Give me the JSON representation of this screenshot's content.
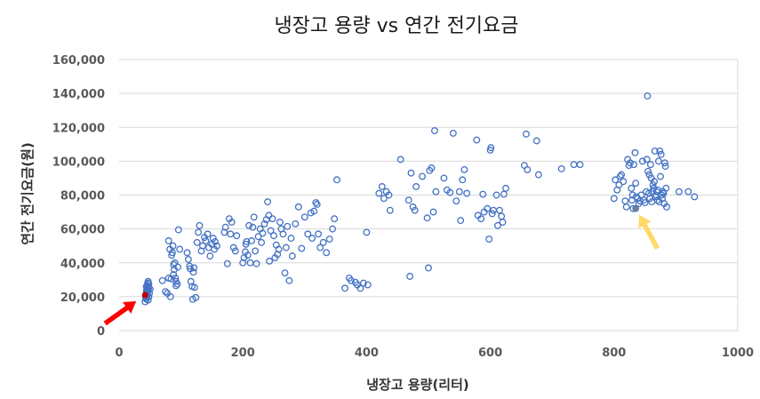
{
  "chart_data": {
    "type": "scatter",
    "title": "냉장고 용량 vs 연간 전기요금",
    "xlabel": "냉장고 용량(리터)",
    "ylabel": "연간 전기요금(원)",
    "xlim": [
      0,
      1000
    ],
    "ylim": [
      0,
      160000
    ],
    "x_ticks": [
      "0",
      "200",
      "400",
      "600",
      "800",
      "1000"
    ],
    "y_ticks": [
      "0",
      "20,000",
      "40,000",
      "60,000",
      "80,000",
      "100,000",
      "120,000",
      "140,000",
      "160,000"
    ],
    "grid": "horizontal",
    "legend": "none",
    "colors": {
      "marker": "#4472c4",
      "highlight": "#c00000",
      "red_arrow": "#ff0000",
      "yellow_arrow": "#ffd966",
      "grid": "#d9d9d9"
    },
    "highlights": [
      {
        "x": 42,
        "y": 21000,
        "arrow_color": "red"
      },
      {
        "x": 835,
        "y": 72000,
        "arrow_color": "yellow"
      }
    ],
    "series": [
      {
        "points": [
          [
            42,
            17000
          ],
          [
            44,
            18500
          ],
          [
            43,
            20000
          ],
          [
            45,
            21000
          ],
          [
            46,
            22500
          ],
          [
            44,
            23500
          ],
          [
            47,
            24000
          ],
          [
            45,
            25000
          ],
          [
            46,
            26500
          ],
          [
            48,
            27500
          ],
          [
            47,
            29000
          ],
          [
            43,
            19500
          ],
          [
            45,
            23000
          ],
          [
            48,
            25500
          ],
          [
            46,
            28000
          ],
          [
            44,
            26000
          ],
          [
            49,
            22000
          ],
          [
            50,
            24500
          ],
          [
            47,
            18000
          ],
          [
            48,
            20000
          ],
          [
            70,
            29500
          ],
          [
            75,
            23000
          ],
          [
            78,
            22000
          ],
          [
            80,
            53000
          ],
          [
            82,
            48000
          ],
          [
            84,
            30500
          ],
          [
            85,
            44500
          ],
          [
            86,
            46000
          ],
          [
            88,
            39000
          ],
          [
            88,
            33000
          ],
          [
            90,
            40000
          ],
          [
            91,
            31000
          ],
          [
            92,
            29000
          ],
          [
            92,
            26500
          ],
          [
            94,
            27500
          ],
          [
            95,
            37500
          ],
          [
            96,
            59500
          ],
          [
            98,
            48000
          ],
          [
            80,
            31000
          ],
          [
            83,
            20000
          ],
          [
            87,
            50000
          ],
          [
            89,
            36000
          ],
          [
            110,
            46000
          ],
          [
            112,
            42000
          ],
          [
            114,
            38000
          ],
          [
            115,
            36500
          ],
          [
            116,
            29000
          ],
          [
            118,
            26000
          ],
          [
            119,
            18500
          ],
          [
            120,
            34500
          ],
          [
            121,
            37000
          ],
          [
            122,
            25500
          ],
          [
            124,
            19500
          ],
          [
            126,
            52000
          ],
          [
            128,
            58000
          ],
          [
            130,
            62000
          ],
          [
            133,
            47000
          ],
          [
            135,
            50000
          ],
          [
            138,
            55000
          ],
          [
            140,
            53000
          ],
          [
            143,
            57000
          ],
          [
            145,
            49000
          ],
          [
            147,
            44000
          ],
          [
            150,
            51000
          ],
          [
            152,
            54500
          ],
          [
            154,
            48000
          ],
          [
            155,
            52500
          ],
          [
            158,
            50000
          ],
          [
            170,
            58000
          ],
          [
            172,
            61000
          ],
          [
            175,
            39500
          ],
          [
            178,
            66000
          ],
          [
            180,
            57000
          ],
          [
            182,
            64000
          ],
          [
            185,
            49000
          ],
          [
            188,
            47000
          ],
          [
            190,
            56000
          ],
          [
            200,
            40000
          ],
          [
            202,
            43000
          ],
          [
            204,
            46500
          ],
          [
            205,
            51000
          ],
          [
            206,
            52500
          ],
          [
            208,
            44500
          ],
          [
            210,
            62000
          ],
          [
            212,
            40000
          ],
          [
            214,
            53000
          ],
          [
            216,
            61000
          ],
          [
            218,
            67000
          ],
          [
            220,
            47000
          ],
          [
            222,
            39500
          ],
          [
            225,
            55500
          ],
          [
            228,
            60000
          ],
          [
            230,
            52000
          ],
          [
            232,
            57500
          ],
          [
            235,
            63000
          ],
          [
            238,
            65500
          ],
          [
            240,
            76000
          ],
          [
            242,
            68000
          ],
          [
            243,
            41000
          ],
          [
            245,
            59000
          ],
          [
            248,
            66000
          ],
          [
            250,
            56000
          ],
          [
            252,
            43000
          ],
          [
            254,
            50500
          ],
          [
            256,
            45000
          ],
          [
            258,
            48000
          ],
          [
            260,
            64000
          ],
          [
            262,
            60000
          ],
          [
            265,
            57000
          ],
          [
            268,
            34000
          ],
          [
            270,
            49000
          ],
          [
            272,
            61500
          ],
          [
            275,
            29500
          ],
          [
            278,
            54500
          ],
          [
            280,
            44000
          ],
          [
            285,
            63000
          ],
          [
            290,
            73000
          ],
          [
            295,
            48500
          ],
          [
            300,
            67000
          ],
          [
            305,
            57000
          ],
          [
            310,
            69500
          ],
          [
            312,
            54500
          ],
          [
            315,
            70500
          ],
          [
            318,
            75500
          ],
          [
            320,
            74500
          ],
          [
            322,
            57000
          ],
          [
            325,
            49000
          ],
          [
            330,
            52000
          ],
          [
            335,
            46000
          ],
          [
            340,
            54000
          ],
          [
            345,
            60000
          ],
          [
            348,
            66000
          ],
          [
            352,
            89000
          ],
          [
            365,
            25000
          ],
          [
            372,
            31000
          ],
          [
            375,
            29500
          ],
          [
            382,
            28500
          ],
          [
            385,
            27000
          ],
          [
            390,
            25000
          ],
          [
            395,
            28000
          ],
          [
            400,
            58000
          ],
          [
            402,
            27000
          ],
          [
            420,
            81000
          ],
          [
            425,
            85000
          ],
          [
            428,
            78000
          ],
          [
            432,
            82000
          ],
          [
            436,
            80000
          ],
          [
            438,
            71000
          ],
          [
            455,
            101000
          ],
          [
            468,
            77000
          ],
          [
            470,
            32000
          ],
          [
            472,
            93000
          ],
          [
            475,
            73000
          ],
          [
            478,
            71000
          ],
          [
            480,
            85000
          ],
          [
            490,
            91000
          ],
          [
            498,
            66500
          ],
          [
            500,
            37000
          ],
          [
            502,
            94500
          ],
          [
            505,
            96000
          ],
          [
            508,
            70000
          ],
          [
            510,
            118000
          ],
          [
            512,
            82000
          ],
          [
            525,
            90000
          ],
          [
            530,
            83000
          ],
          [
            535,
            81500
          ],
          [
            540,
            116500
          ],
          [
            545,
            76500
          ],
          [
            550,
            82000
          ],
          [
            552,
            65000
          ],
          [
            555,
            89000
          ],
          [
            558,
            95000
          ],
          [
            562,
            81000
          ],
          [
            578,
            112500
          ],
          [
            580,
            68000
          ],
          [
            585,
            66000
          ],
          [
            588,
            80500
          ],
          [
            590,
            70000
          ],
          [
            595,
            72000
          ],
          [
            598,
            54000
          ],
          [
            600,
            106500
          ],
          [
            601,
            108000
          ],
          [
            603,
            69000
          ],
          [
            605,
            71000
          ],
          [
            610,
            80000
          ],
          [
            612,
            62000
          ],
          [
            615,
            71000
          ],
          [
            618,
            67500
          ],
          [
            620,
            64000
          ],
          [
            622,
            80500
          ],
          [
            625,
            84000
          ],
          [
            655,
            97500
          ],
          [
            658,
            116000
          ],
          [
            660,
            95000
          ],
          [
            675,
            112000
          ],
          [
            678,
            92000
          ],
          [
            715,
            95500
          ],
          [
            735,
            98000
          ],
          [
            745,
            98000
          ],
          [
            800,
            78000
          ],
          [
            802,
            89000
          ],
          [
            805,
            83000
          ],
          [
            808,
            86000
          ],
          [
            810,
            91000
          ],
          [
            812,
            92000
          ],
          [
            815,
            88000
          ],
          [
            818,
            76500
          ],
          [
            820,
            73000
          ],
          [
            822,
            101000
          ],
          [
            824,
            97500
          ],
          [
            826,
            99000
          ],
          [
            828,
            84000
          ],
          [
            829,
            77000
          ],
          [
            830,
            80000
          ],
          [
            831,
            72000
          ],
          [
            832,
            98000
          ],
          [
            834,
            105000
          ],
          [
            835,
            87000
          ],
          [
            836,
            79000
          ],
          [
            838,
            78000
          ],
          [
            840,
            75000
          ],
          [
            842,
            76500
          ],
          [
            844,
            80000
          ],
          [
            846,
            100000
          ],
          [
            848,
            77000
          ],
          [
            850,
            75500
          ],
          [
            852,
            82000
          ],
          [
            853,
            101000
          ],
          [
            854,
            138500
          ],
          [
            855,
            94000
          ],
          [
            856,
            81000
          ],
          [
            857,
            92000
          ],
          [
            858,
            78000
          ],
          [
            859,
            98000
          ],
          [
            860,
            90000
          ],
          [
            861,
            76000
          ],
          [
            862,
            82000
          ],
          [
            863,
            86000
          ],
          [
            864,
            84000
          ],
          [
            865,
            88000
          ],
          [
            866,
            106000
          ],
          [
            867,
            79000
          ],
          [
            868,
            80000
          ],
          [
            869,
            82000
          ],
          [
            870,
            77000
          ],
          [
            871,
            83000
          ],
          [
            872,
            100000
          ],
          [
            873,
            76000
          ],
          [
            874,
            106000
          ],
          [
            875,
            91000
          ],
          [
            876,
            104000
          ],
          [
            877,
            80000
          ],
          [
            878,
            78000
          ],
          [
            879,
            82000
          ],
          [
            880,
            81000
          ],
          [
            881,
            75000
          ],
          [
            882,
            99000
          ],
          [
            883,
            97000
          ],
          [
            884,
            84000
          ],
          [
            885,
            73000
          ],
          [
            905,
            82000
          ],
          [
            920,
            82000
          ],
          [
            930,
            79000
          ]
        ]
      }
    ]
  }
}
